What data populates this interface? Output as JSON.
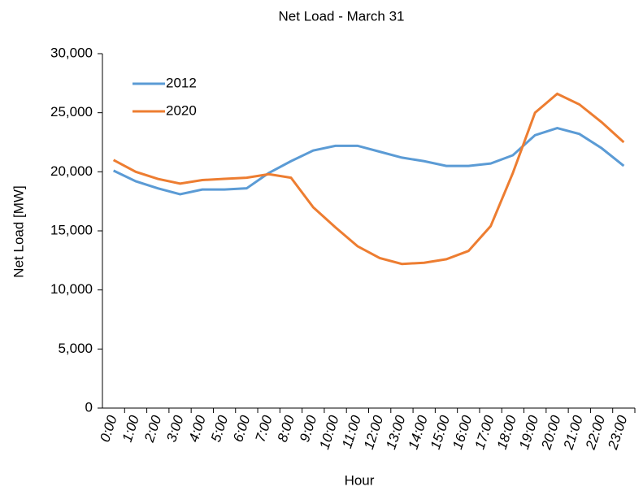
{
  "chart_data": {
    "type": "line",
    "title": "Net Load - March 31",
    "x_label": "Hour",
    "y_label": "Net Load [MW]",
    "categories": [
      "0:00",
      "1:00",
      "2:00",
      "3:00",
      "4:00",
      "5:00",
      "6:00",
      "7:00",
      "8:00",
      "9:00",
      "10:00",
      "11:00",
      "12:00",
      "13:00",
      "14:00",
      "15:00",
      "16:00",
      "17:00",
      "18:00",
      "19:00",
      "20:00",
      "21:00",
      "22:00",
      "23:00"
    ],
    "series": [
      {
        "name": "2012",
        "color": "#5b9bd5",
        "values": [
          20100,
          19200,
          18600,
          18100,
          18500,
          18500,
          18600,
          19900,
          20900,
          21800,
          22200,
          22200,
          21700,
          21200,
          20900,
          20500,
          20500,
          20700,
          21400,
          23100,
          23700,
          23200,
          22000,
          20500
        ]
      },
      {
        "name": "2020",
        "color": "#ed7d31",
        "values": [
          21000,
          20000,
          19400,
          19000,
          19300,
          19400,
          19500,
          19800,
          19500,
          17000,
          15300,
          13700,
          12700,
          12200,
          12300,
          12600,
          13300,
          15400,
          19900,
          25000,
          26600,
          25700,
          24200,
          22500
        ]
      }
    ],
    "ylim": [
      0,
      30000
    ],
    "yticks": [
      0,
      {
        "value": 5000,
        "label": "5,000"
      },
      {
        "value": 10000,
        "label": "10,000"
      },
      {
        "value": 15000,
        "label": "15,000"
      },
      {
        "value": 20000,
        "label": "20,000"
      },
      {
        "value": 25000,
        "label": "25,000"
      },
      {
        "value": 30000,
        "label": "30,000"
      }
    ],
    "legend": "upper-left",
    "grid": false
  }
}
